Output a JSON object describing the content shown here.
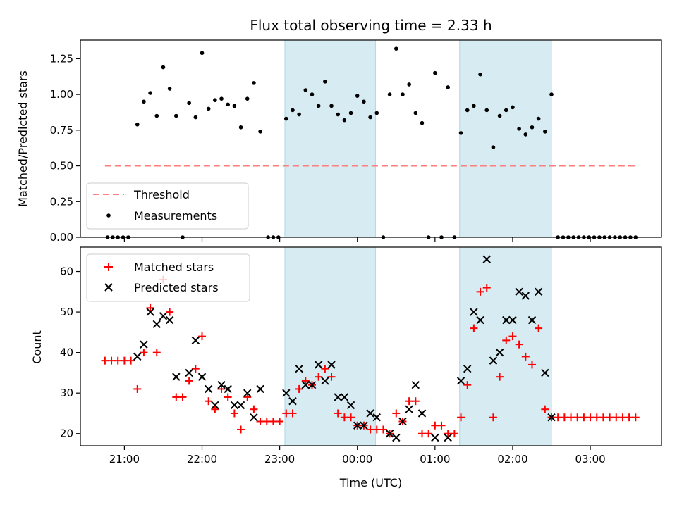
{
  "chart_data": [
    {
      "type": "scatter",
      "title": "Flux total observing time = 2.33 h",
      "ylabel": "Matched/Predicted stars",
      "xlim": [
        "20:26",
        "03:55"
      ],
      "ylim": [
        0,
        1.38
      ],
      "yticks": [
        "0.00",
        "0.25",
        "0.50",
        "0.75",
        "1.00",
        "1.25"
      ],
      "grid": false,
      "legend_position": "lower-left",
      "shaded_intervals": [
        {
          "start": "23:04",
          "end": "00:14"
        },
        {
          "start": "01:19",
          "end": "02:30"
        }
      ],
      "threshold": {
        "name": "Threshold",
        "value": 0.5,
        "x_start": "20:45",
        "x_end": "03:37",
        "color": "#ff7f7f"
      },
      "series": [
        {
          "name": "Measurements",
          "color": "#000000",
          "points": [
            [
              "20:47",
              0.0
            ],
            [
              "20:51",
              0.0
            ],
            [
              "20:55",
              0.0
            ],
            [
              "20:59",
              0.0
            ],
            [
              "21:03",
              0.0
            ],
            [
              "21:10",
              0.79
            ],
            [
              "21:15",
              0.95
            ],
            [
              "21:20",
              1.01
            ],
            [
              "21:25",
              0.85
            ],
            [
              "21:30",
              1.19
            ],
            [
              "21:35",
              1.04
            ],
            [
              "21:40",
              0.85
            ],
            [
              "21:45",
              0.0
            ],
            [
              "21:50",
              0.94
            ],
            [
              "21:55",
              0.84
            ],
            [
              "22:00",
              1.29
            ],
            [
              "22:05",
              0.9
            ],
            [
              "22:10",
              0.96
            ],
            [
              "22:15",
              0.97
            ],
            [
              "22:20",
              0.93
            ],
            [
              "22:25",
              0.92
            ],
            [
              "22:30",
              0.77
            ],
            [
              "22:35",
              0.97
            ],
            [
              "22:40",
              1.08
            ],
            [
              "22:45",
              0.74
            ],
            [
              "22:51",
              0.0
            ],
            [
              "22:55",
              0.0
            ],
            [
              "22:59",
              0.0
            ],
            [
              "23:05",
              0.83
            ],
            [
              "23:10",
              0.89
            ],
            [
              "23:15",
              0.86
            ],
            [
              "23:20",
              1.03
            ],
            [
              "23:25",
              1.0
            ],
            [
              "23:30",
              0.92
            ],
            [
              "23:35",
              1.09
            ],
            [
              "23:40",
              0.92
            ],
            [
              "23:45",
              0.86
            ],
            [
              "23:50",
              0.82
            ],
            [
              "23:55",
              0.87
            ],
            [
              "00:00",
              0.99
            ],
            [
              "00:05",
              0.95
            ],
            [
              "00:10",
              0.84
            ],
            [
              "00:15",
              0.87
            ],
            [
              "00:20",
              0.0
            ],
            [
              "00:25",
              1.0
            ],
            [
              "00:30",
              1.32
            ],
            [
              "00:35",
              1.0
            ],
            [
              "00:40",
              1.07
            ],
            [
              "00:45",
              0.87
            ],
            [
              "00:50",
              0.8
            ],
            [
              "00:55",
              0.0
            ],
            [
              "01:00",
              1.15
            ],
            [
              "01:05",
              0.0
            ],
            [
              "01:10",
              1.05
            ],
            [
              "01:15",
              0.0
            ],
            [
              "01:20",
              0.73
            ],
            [
              "01:25",
              0.89
            ],
            [
              "01:30",
              0.92
            ],
            [
              "01:35",
              1.14
            ],
            [
              "01:40",
              0.89
            ],
            [
              "01:45",
              0.63
            ],
            [
              "01:50",
              0.85
            ],
            [
              "01:55",
              0.89
            ],
            [
              "02:00",
              0.91
            ],
            [
              "02:05",
              0.76
            ],
            [
              "02:10",
              0.72
            ],
            [
              "02:15",
              0.77
            ],
            [
              "02:20",
              0.83
            ],
            [
              "02:25",
              0.74
            ],
            [
              "02:30",
              1.0
            ],
            [
              "02:35",
              0.0
            ],
            [
              "02:39",
              0.0
            ],
            [
              "02:43",
              0.0
            ],
            [
              "02:47",
              0.0
            ],
            [
              "02:51",
              0.0
            ],
            [
              "02:55",
              0.0
            ],
            [
              "02:59",
              0.0
            ],
            [
              "03:03",
              0.0
            ],
            [
              "03:07",
              0.0
            ],
            [
              "03:11",
              0.0
            ],
            [
              "03:15",
              0.0
            ],
            [
              "03:19",
              0.0
            ],
            [
              "03:23",
              0.0
            ],
            [
              "03:27",
              0.0
            ],
            [
              "03:31",
              0.0
            ],
            [
              "03:35",
              0.0
            ]
          ]
        }
      ]
    },
    {
      "type": "scatter",
      "xlabel": "Time (UTC)",
      "ylabel": "Count",
      "xlim": [
        "20:26",
        "03:55"
      ],
      "ylim": [
        17,
        66
      ],
      "xticks": [
        "21:00",
        "22:00",
        "23:00",
        "00:00",
        "01:00",
        "02:00",
        "03:00"
      ],
      "yticks": [
        "20",
        "30",
        "40",
        "50",
        "60"
      ],
      "grid": false,
      "legend_position": "upper-left",
      "shaded_intervals": [
        {
          "start": "23:04",
          "end": "00:14"
        },
        {
          "start": "01:19",
          "end": "02:30"
        }
      ],
      "series": [
        {
          "name": "Matched stars",
          "color": "#ff0000",
          "marker": "plus",
          "points": [
            [
              "20:45",
              38
            ],
            [
              "20:50",
              38
            ],
            [
              "20:55",
              38
            ],
            [
              "21:00",
              38
            ],
            [
              "21:05",
              38
            ],
            [
              "21:10",
              31
            ],
            [
              "21:15",
              40
            ],
            [
              "21:20",
              51
            ],
            [
              "21:25",
              40
            ],
            [
              "21:30",
              58
            ],
            [
              "21:35",
              50
            ],
            [
              "21:40",
              29
            ],
            [
              "21:45",
              29
            ],
            [
              "21:50",
              33
            ],
            [
              "21:55",
              36
            ],
            [
              "22:00",
              44
            ],
            [
              "22:05",
              28
            ],
            [
              "22:10",
              26
            ],
            [
              "22:15",
              31
            ],
            [
              "22:20",
              29
            ],
            [
              "22:25",
              25
            ],
            [
              "22:30",
              21
            ],
            [
              "22:35",
              29
            ],
            [
              "22:40",
              26
            ],
            [
              "22:45",
              23
            ],
            [
              "22:50",
              23
            ],
            [
              "22:55",
              23
            ],
            [
              "23:00",
              23
            ],
            [
              "23:05",
              25
            ],
            [
              "23:10",
              25
            ],
            [
              "23:15",
              31
            ],
            [
              "23:20",
              33
            ],
            [
              "23:25",
              32
            ],
            [
              "23:30",
              34
            ],
            [
              "23:35",
              36
            ],
            [
              "23:40",
              34
            ],
            [
              "23:45",
              25
            ],
            [
              "23:50",
              24
            ],
            [
              "23:55",
              24
            ],
            [
              "00:00",
              22
            ],
            [
              "00:05",
              22
            ],
            [
              "00:10",
              21
            ],
            [
              "00:15",
              21
            ],
            [
              "00:20",
              21
            ],
            [
              "00:25",
              20
            ],
            [
              "00:30",
              25
            ],
            [
              "00:35",
              23
            ],
            [
              "00:40",
              28
            ],
            [
              "00:45",
              28
            ],
            [
              "00:50",
              20
            ],
            [
              "00:55",
              20
            ],
            [
              "01:00",
              22
            ],
            [
              "01:05",
              22
            ],
            [
              "01:10",
              20
            ],
            [
              "01:15",
              20
            ],
            [
              "01:20",
              24
            ],
            [
              "01:25",
              32
            ],
            [
              "01:30",
              46
            ],
            [
              "01:35",
              55
            ],
            [
              "01:40",
              56
            ],
            [
              "01:45",
              24
            ],
            [
              "01:50",
              34
            ],
            [
              "01:55",
              43
            ],
            [
              "02:00",
              44
            ],
            [
              "02:05",
              42
            ],
            [
              "02:10",
              39
            ],
            [
              "02:15",
              37
            ],
            [
              "02:20",
              46
            ],
            [
              "02:25",
              26
            ],
            [
              "02:30",
              24
            ],
            [
              "02:35",
              24
            ],
            [
              "02:40",
              24
            ],
            [
              "02:45",
              24
            ],
            [
              "02:50",
              24
            ],
            [
              "02:55",
              24
            ],
            [
              "03:00",
              24
            ],
            [
              "03:05",
              24
            ],
            [
              "03:10",
              24
            ],
            [
              "03:15",
              24
            ],
            [
              "03:20",
              24
            ],
            [
              "03:25",
              24
            ],
            [
              "03:30",
              24
            ],
            [
              "03:35",
              24
            ]
          ]
        },
        {
          "name": "Predicted stars",
          "color": "#000000",
          "marker": "x",
          "points": [
            [
              "21:10",
              39
            ],
            [
              "21:15",
              42
            ],
            [
              "21:20",
              50
            ],
            [
              "21:25",
              47
            ],
            [
              "21:30",
              49
            ],
            [
              "21:35",
              48
            ],
            [
              "21:40",
              34
            ],
            [
              "21:50",
              35
            ],
            [
              "21:55",
              43
            ],
            [
              "22:00",
              34
            ],
            [
              "22:05",
              31
            ],
            [
              "22:10",
              27
            ],
            [
              "22:15",
              32
            ],
            [
              "22:20",
              31
            ],
            [
              "22:25",
              27
            ],
            [
              "22:30",
              27
            ],
            [
              "22:35",
              30
            ],
            [
              "22:40",
              24
            ],
            [
              "22:45",
              31
            ],
            [
              "23:05",
              30
            ],
            [
              "23:10",
              28
            ],
            [
              "23:15",
              36
            ],
            [
              "23:20",
              32
            ],
            [
              "23:25",
              32
            ],
            [
              "23:30",
              37
            ],
            [
              "23:35",
              33
            ],
            [
              "23:40",
              37
            ],
            [
              "23:45",
              29
            ],
            [
              "23:50",
              29
            ],
            [
              "23:55",
              27
            ],
            [
              "00:00",
              22
            ],
            [
              "00:05",
              22
            ],
            [
              "00:10",
              25
            ],
            [
              "00:15",
              24
            ],
            [
              "00:25",
              20
            ],
            [
              "00:30",
              19
            ],
            [
              "00:35",
              23
            ],
            [
              "00:40",
              26
            ],
            [
              "00:45",
              32
            ],
            [
              "00:50",
              25
            ],
            [
              "01:00",
              19
            ],
            [
              "01:10",
              19
            ],
            [
              "01:20",
              33
            ],
            [
              "01:25",
              36
            ],
            [
              "01:30",
              50
            ],
            [
              "01:35",
              48
            ],
            [
              "01:40",
              63
            ],
            [
              "01:45",
              38
            ],
            [
              "01:50",
              40
            ],
            [
              "01:55",
              48
            ],
            [
              "02:00",
              48
            ],
            [
              "02:05",
              55
            ],
            [
              "02:10",
              54
            ],
            [
              "02:15",
              48
            ],
            [
              "02:20",
              55
            ],
            [
              "02:25",
              35
            ],
            [
              "02:30",
              24
            ]
          ]
        }
      ]
    }
  ]
}
